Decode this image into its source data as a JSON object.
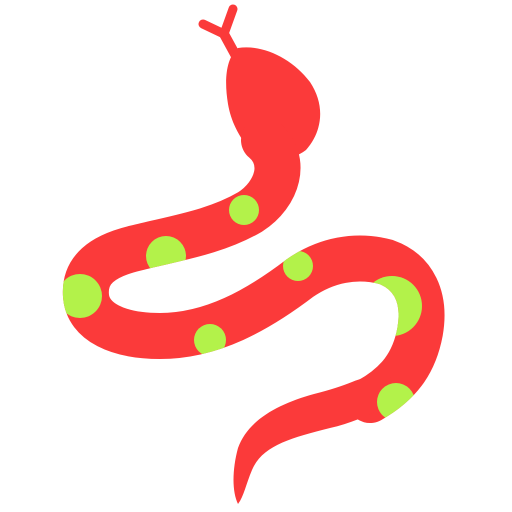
{
  "icon": {
    "name": "snake-icon",
    "colors": {
      "body": "#fb3a3a",
      "spots": "#b3f24a",
      "background": "#ffffff"
    }
  }
}
